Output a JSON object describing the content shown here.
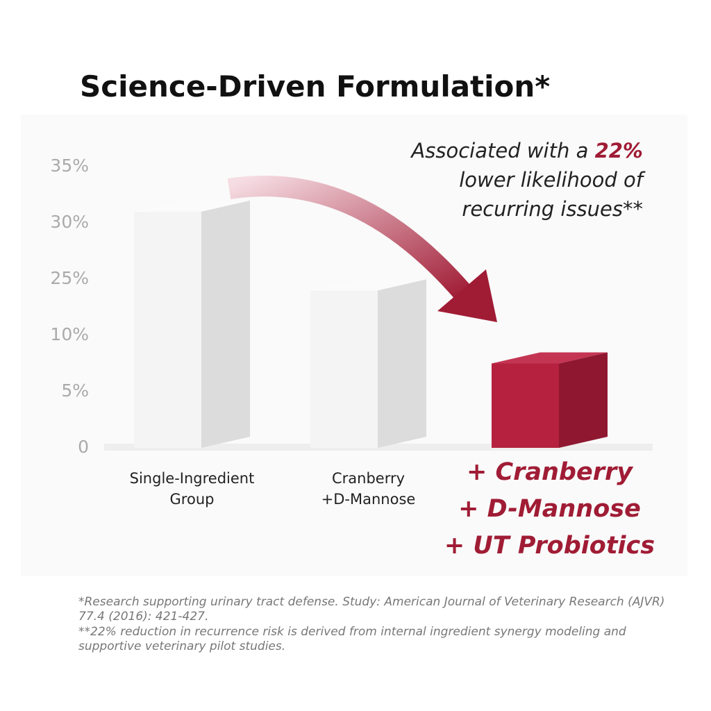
{
  "chart_data": {
    "type": "bar",
    "title": "Science-Driven Formulation*",
    "annotation": {
      "prefix": "Associated with a",
      "highlight": "22%",
      "suffix": "lower likelihood of recurring issues**"
    },
    "categories": [
      "Single-Ingredient\nGroup",
      "Cranberry\n+D-Mannose",
      "+ Cranberry\n+ D-Mannose\n+ UT Probiotics"
    ],
    "values": [
      31,
      22,
      7.5
    ],
    "colors": [
      "#f4f4f4",
      "#f4f4f4",
      "#b5213f"
    ],
    "ylim": [
      0,
      35
    ],
    "yticks": [
      0,
      {
        "value": 5,
        "label": "5%"
      },
      {
        "value": 10,
        "label": "10%"
      },
      {
        "value": 25,
        "label": "25%"
      },
      {
        "value": 30,
        "label": "30%"
      },
      {
        "value": 35,
        "label": "35%"
      }
    ],
    "footnotes": [
      "*Research supporting urinary tract defense. Study: American Journal of Veterinary Research (AJVR) 77.4 (2016): 421-427.",
      "**22% reduction in recurrence risk is derived from internal ingredient synergy modeling and supportive veterinary pilot studies."
    ]
  }
}
